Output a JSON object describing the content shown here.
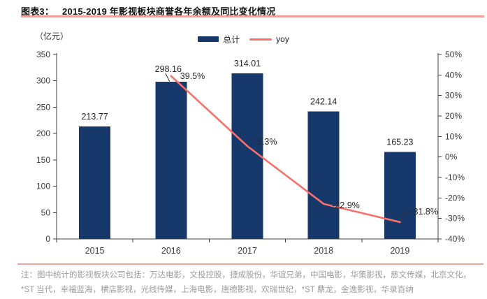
{
  "header": {
    "label": "图表3：",
    "title": "2015-2019 年影视板块商誉各年余额及同比变化情况"
  },
  "unit_label": "（亿元）",
  "legend": {
    "items": [
      {
        "name": "总计",
        "marker": "bar-swatch",
        "color": "#16386B"
      },
      {
        "name": "yoy",
        "marker": "line-swatch",
        "color": "#F8706B"
      }
    ]
  },
  "chart_data": {
    "type": "bar",
    "subtype": "bar+line dual-axis",
    "categories": [
      "2015",
      "2016",
      "2017",
      "2018",
      "2019"
    ],
    "series": [
      {
        "name": "总计",
        "type": "bar",
        "axis": "left",
        "color": "#16386B",
        "values": [
          213.77,
          298.16,
          314.01,
          242.14,
          165.23
        ],
        "labels": [
          "213.77",
          "298.16",
          "314.01",
          "242.14",
          "165.23"
        ]
      },
      {
        "name": "yoy",
        "type": "line",
        "axis": "right",
        "color": "#F8706B",
        "values": [
          null,
          39.5,
          5.3,
          -22.9,
          -31.8
        ],
        "labels": [
          null,
          "39.5%",
          "5.3%",
          "-22.9%",
          "-31.8%"
        ]
      }
    ],
    "y_left": {
      "unit": "（亿元）",
      "min": 0,
      "max": 350,
      "step": 50
    },
    "y_right": {
      "min": -40,
      "max": 50,
      "step": 10,
      "suffix": "%"
    },
    "grid": false,
    "legend_position": "top-center",
    "title": "2015-2019 年影视板块商誉各年余额及同比变化情况"
  },
  "footnote": "注：图中统计的影视板块公司包括：万达电影，文投控股，捷成股份，华谊兄弟，中国电影，华策影视，慈文传媒，北京文化，*ST 当代，幸福蓝海，横店影视，光线传媒，上海电影，唐德影视，欢瑞世纪，*ST 鼎龙，金逸影视，华录百纳",
  "colors": {
    "bar": "#16386B",
    "line": "#F8706B",
    "rule": "#F2A19D",
    "axis": "#404040",
    "tick_text": "#383838",
    "value_text": "#262626",
    "note_text": "#9C9C9C"
  }
}
